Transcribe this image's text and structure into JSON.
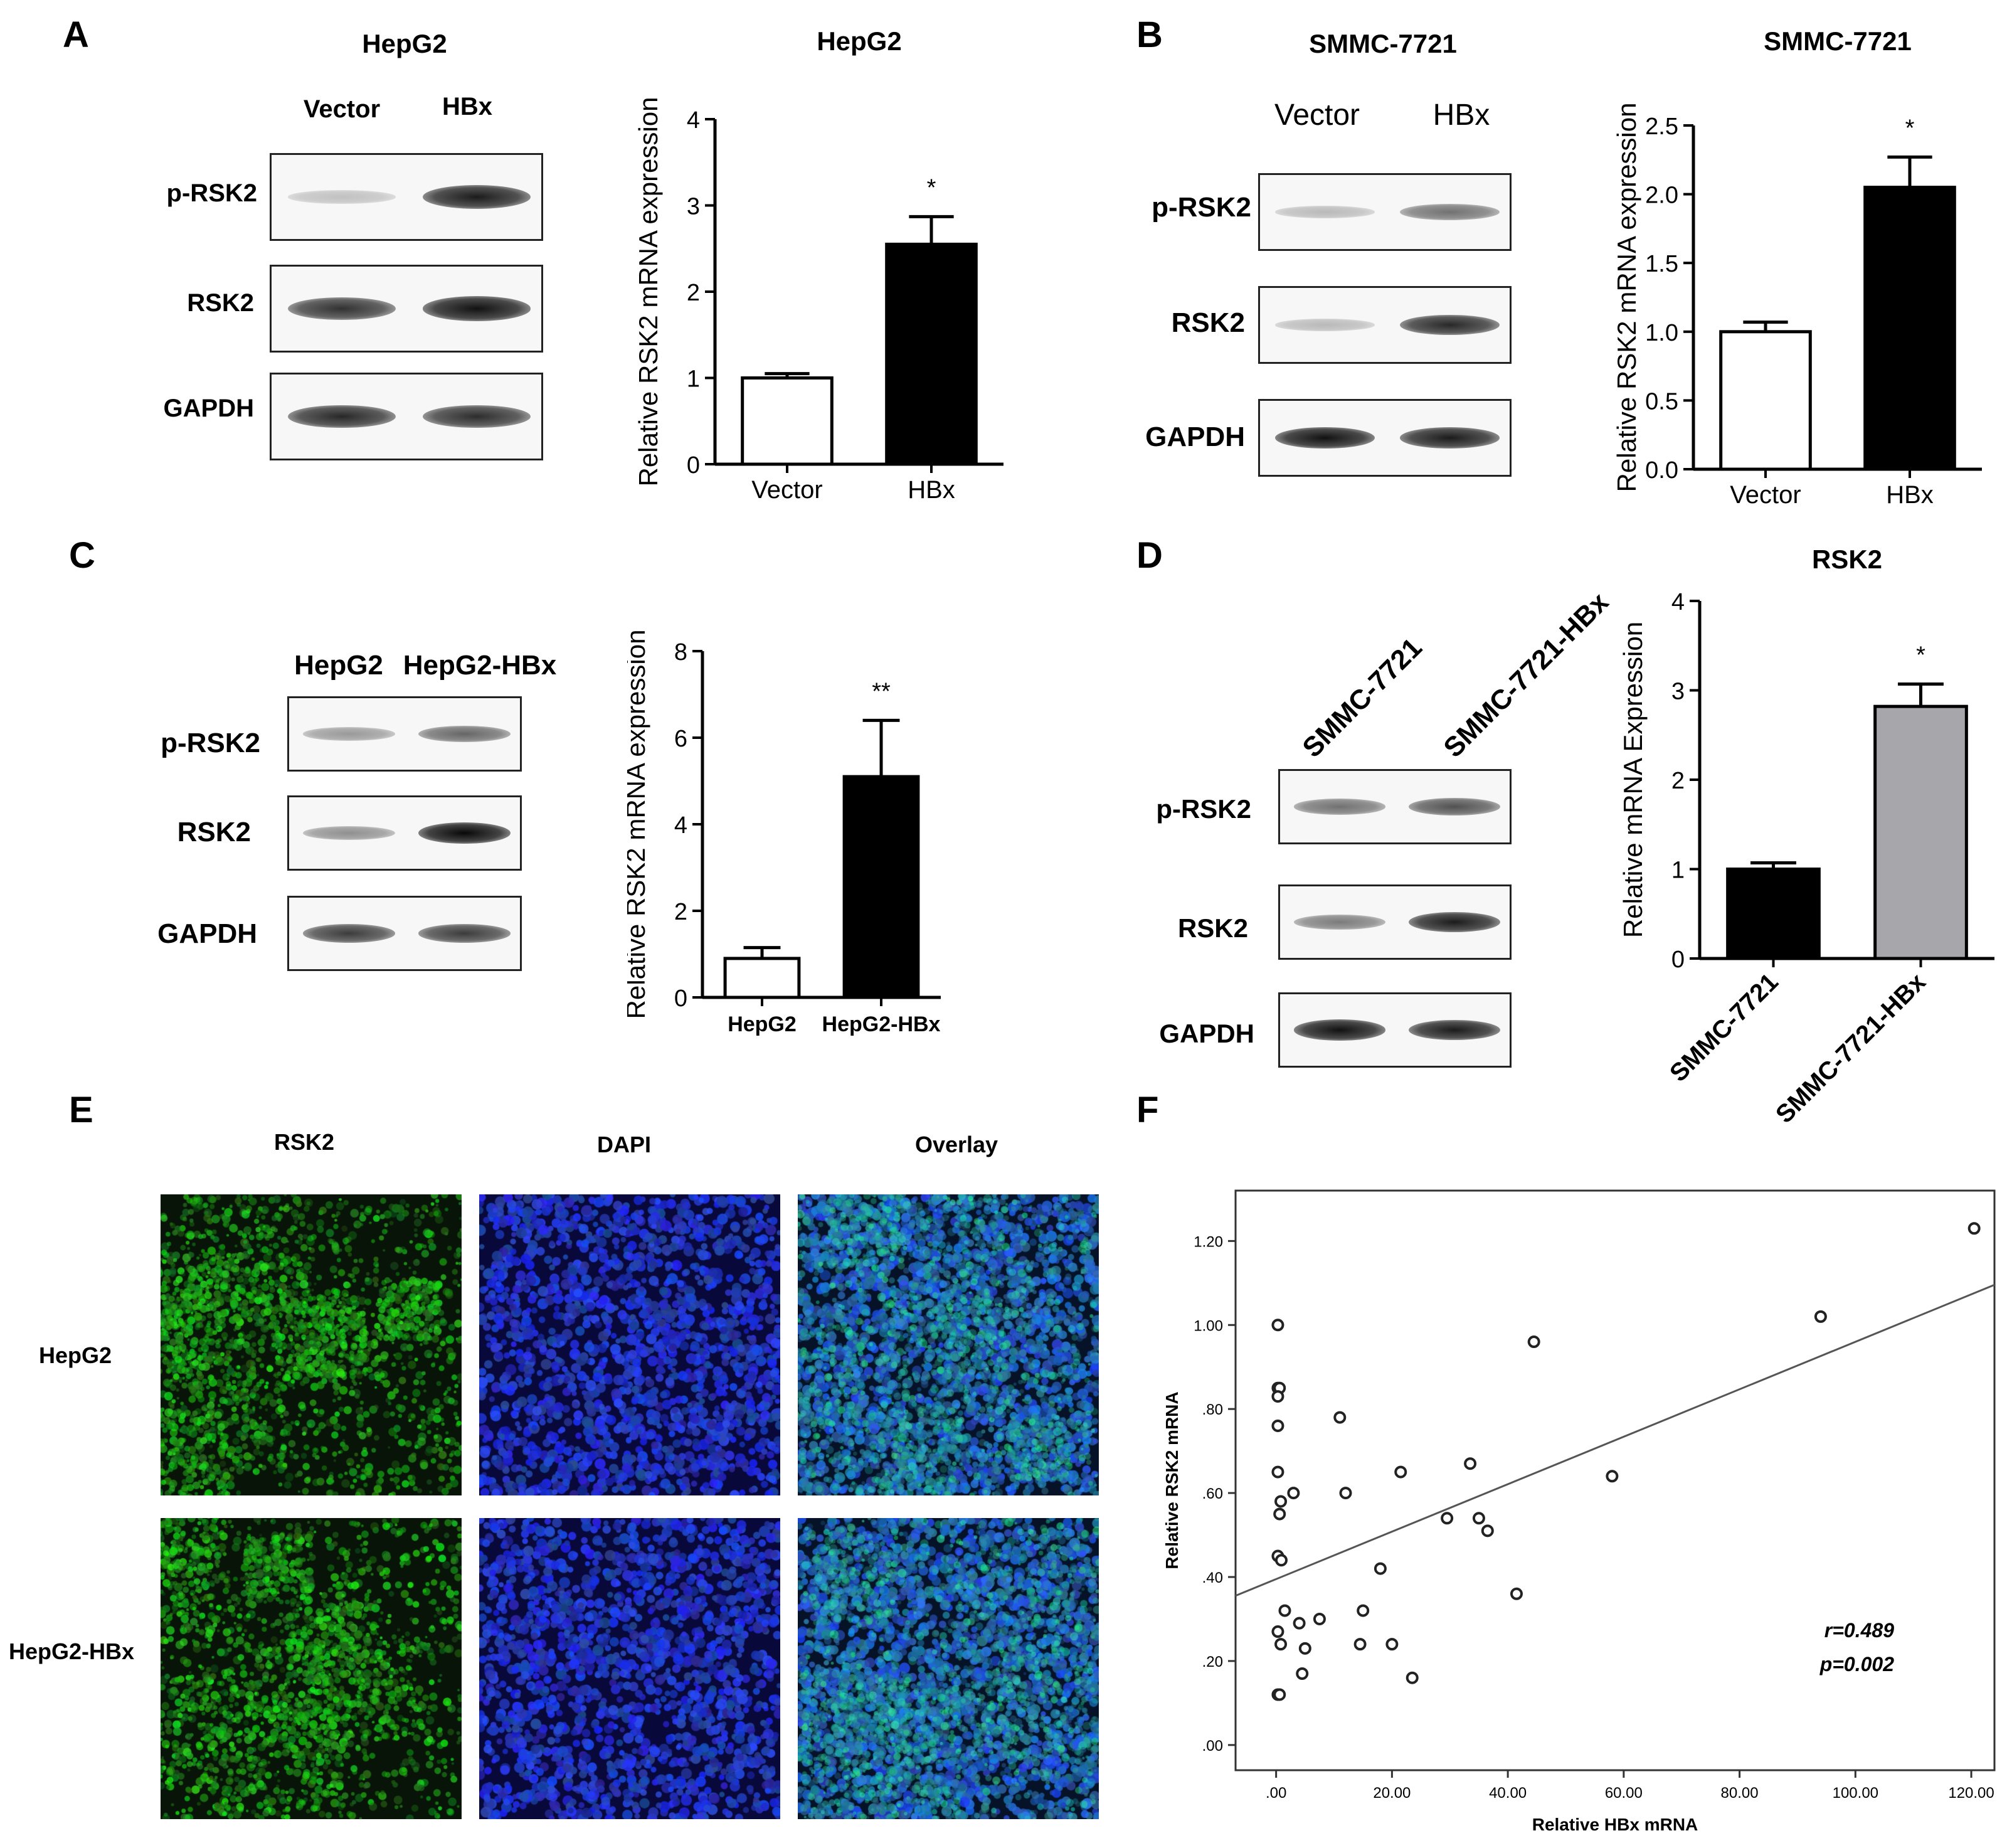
{
  "panels": {
    "A": {
      "letter": "A",
      "blot": {
        "title": "HepG2",
        "lanes": [
          "Vector",
          "HBx"
        ],
        "bands": [
          {
            "label": "p-RSK2",
            "intensity": [
              0.12,
              0.9
            ]
          },
          {
            "label": "RSK2",
            "intensity": [
              0.8,
              0.95
            ]
          },
          {
            "label": "GAPDH",
            "intensity": [
              0.85,
              0.82
            ]
          }
        ]
      }
    },
    "B": {
      "letter": "B",
      "blot": {
        "title": "SMMC-7721",
        "lanes": [
          "Vector",
          "HBx"
        ],
        "bands": [
          {
            "label": "p-RSK2",
            "intensity": [
              0.15,
              0.5
            ]
          },
          {
            "label": "RSK2",
            "intensity": [
              0.15,
              0.85
            ]
          },
          {
            "label": "GAPDH",
            "intensity": [
              0.95,
              0.9
            ]
          }
        ]
      }
    },
    "C": {
      "letter": "C",
      "blot": {
        "title": "",
        "lanes": [
          "HepG2",
          "HepG2-HBx"
        ],
        "bands": [
          {
            "label": "p-RSK2",
            "intensity": [
              0.3,
              0.55
            ]
          },
          {
            "label": "RSK2",
            "intensity": [
              0.35,
              1.0
            ]
          },
          {
            "label": "GAPDH",
            "intensity": [
              0.75,
              0.75
            ]
          }
        ]
      }
    },
    "D": {
      "letter": "D",
      "blot": {
        "title": "",
        "lanes": [
          "SMMC-7721",
          "SMMC-7721-HBx"
        ],
        "bands": [
          {
            "label": "p-RSK2",
            "intensity": [
              0.5,
              0.65
            ]
          },
          {
            "label": "RSK2",
            "intensity": [
              0.45,
              0.9
            ]
          },
          {
            "label": "GAPDH",
            "intensity": [
              0.95,
              0.9
            ]
          }
        ]
      }
    },
    "E": {
      "letter": "E",
      "columns": [
        "RSK2",
        "DAPI",
        "Overlay"
      ],
      "rows": [
        "HepG2",
        "HepG2-HBx"
      ]
    },
    "F": {
      "letter": "F",
      "annotation_r": "r=0.489",
      "annotation_p": "p=0.002"
    }
  },
  "chart_data": [
    {
      "id": "A",
      "type": "bar",
      "title": "HepG2",
      "ylabel": "Relative RSK2 mRNA expression",
      "categories": [
        "Vector",
        "HBx"
      ],
      "values": [
        1.0,
        2.55
      ],
      "errors": [
        0.05,
        0.32
      ],
      "colors": [
        "#ffffff",
        "#000000"
      ],
      "significance": [
        "",
        "*"
      ],
      "ylim": [
        0,
        4
      ],
      "yticks": [
        0,
        1,
        2,
        3,
        4
      ],
      "ytick_labels": [
        "0",
        "1",
        "2",
        "3",
        "4"
      ]
    },
    {
      "id": "B",
      "type": "bar",
      "title": "SMMC-7721",
      "ylabel": "Relative RSK2 mRNA expression",
      "categories": [
        "Vector",
        "HBx"
      ],
      "values": [
        1.0,
        2.05
      ],
      "errors": [
        0.07,
        0.22
      ],
      "colors": [
        "#ffffff",
        "#000000"
      ],
      "significance": [
        "",
        "*"
      ],
      "ylim": [
        0,
        2.5
      ],
      "yticks": [
        0,
        0.5,
        1.0,
        1.5,
        2.0,
        2.5
      ],
      "ytick_labels": [
        "0.0",
        "0.5",
        "1.0",
        "1.5",
        "2.0",
        "2.5"
      ]
    },
    {
      "id": "C",
      "type": "bar",
      "title": "",
      "ylabel": "Relative RSK2 mRNA expression",
      "categories": [
        "HepG2",
        "HepG2-HBx"
      ],
      "values": [
        0.9,
        5.1
      ],
      "errors": [
        0.25,
        1.3
      ],
      "colors": [
        "#ffffff",
        "#000000"
      ],
      "significance": [
        "",
        "**"
      ],
      "ylim": [
        0,
        8
      ],
      "yticks": [
        0,
        2,
        4,
        6,
        8
      ],
      "ytick_labels": [
        "0",
        "2",
        "4",
        "6",
        "8"
      ]
    },
    {
      "id": "D",
      "type": "bar",
      "title": "RSK2",
      "ylabel": "Relative mRNA Expression",
      "categories": [
        "SMMC-7721",
        "SMMC-7721-HBx"
      ],
      "values": [
        1.0,
        2.82
      ],
      "errors": [
        0.07,
        0.25
      ],
      "colors": [
        "#000000",
        "#a6a6ab"
      ],
      "significance": [
        "",
        "*"
      ],
      "ylim": [
        0,
        4
      ],
      "yticks": [
        0,
        1,
        2,
        3,
        4
      ],
      "ytick_labels": [
        "0",
        "1",
        "2",
        "3",
        "4"
      ]
    },
    {
      "id": "F",
      "type": "scatter",
      "title": "",
      "xlabel": "Relative HBx mRNA",
      "ylabel": "Relative RSK2 mRNA",
      "xlim": [
        -7,
        124
      ],
      "ylim": [
        -0.06,
        1.32
      ],
      "xticks": [
        0,
        20,
        40,
        60,
        80,
        100,
        120
      ],
      "xtick_labels": [
        ".00",
        "20.00",
        "40.00",
        "60.00",
        "80.00",
        "100.00",
        "120.00"
      ],
      "yticks": [
        0,
        0.2,
        0.4,
        0.6,
        0.8,
        1.0,
        1.2
      ],
      "ytick_labels": [
        ".00",
        ".20",
        ".40",
        ".60",
        ".80",
        "1.00",
        "1.20"
      ],
      "fit_line": {
        "intercept": 0.395,
        "slope": 0.00565
      },
      "points": [
        [
          0.3,
          1.0
        ],
        [
          0.3,
          0.85
        ],
        [
          0.6,
          0.85
        ],
        [
          0.3,
          0.83
        ],
        [
          0.3,
          0.76
        ],
        [
          0.3,
          0.65
        ],
        [
          0.8,
          0.58
        ],
        [
          0.6,
          0.55
        ],
        [
          0.3,
          0.45
        ],
        [
          0.9,
          0.44
        ],
        [
          1.5,
          0.32
        ],
        [
          0.3,
          0.27
        ],
        [
          0.8,
          0.24
        ],
        [
          0.3,
          0.12
        ],
        [
          0.6,
          0.12
        ],
        [
          4.0,
          0.29
        ],
        [
          5.0,
          0.23
        ],
        [
          7.5,
          0.3
        ],
        [
          4.5,
          0.17
        ],
        [
          3.0,
          0.6
        ],
        [
          11.0,
          0.78
        ],
        [
          12.0,
          0.6
        ],
        [
          14.5,
          0.24
        ],
        [
          15.0,
          0.32
        ],
        [
          18.0,
          0.42
        ],
        [
          20.0,
          0.24
        ],
        [
          21.5,
          0.65
        ],
        [
          23.5,
          0.16
        ],
        [
          29.5,
          0.54
        ],
        [
          33.5,
          0.67
        ],
        [
          35.0,
          0.54
        ],
        [
          36.5,
          0.51
        ],
        [
          41.5,
          0.36
        ],
        [
          44.5,
          0.96
        ],
        [
          58.0,
          0.64
        ],
        [
          94.0,
          1.02
        ],
        [
          120.5,
          1.23
        ]
      ]
    }
  ]
}
